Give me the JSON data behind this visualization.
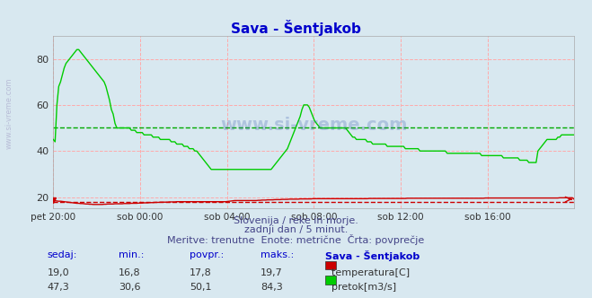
{
  "title": "Sava - Šentjakob",
  "bg_color": "#d8e8f0",
  "plot_bg_color": "#d8e8f0",
  "grid_color": "#ffaaaa",
  "grid_style": "--",
  "avg_temp": 17.8,
  "avg_flow": 50.1,
  "temp_color": "#cc0000",
  "flow_color": "#00cc00",
  "avg_temp_color": "#cc0000",
  "avg_flow_color": "#00aa00",
  "xlim": [
    0,
    288
  ],
  "ylim": [
    15,
    90
  ],
  "yticks": [
    20,
    40,
    60,
    80
  ],
  "xtick_positions": [
    0,
    48,
    96,
    144,
    192,
    240,
    288
  ],
  "xtick_labels": [
    "pet 20:00",
    "sob 00:00",
    "sob 04:00",
    "sob 08:00",
    "sob 12:00",
    "sob 16:00",
    ""
  ],
  "subtitle1": "Slovenija / reke in morje.",
  "subtitle2": "zadnji dan / 5 minut.",
  "subtitle3": "Meritve: trenutne  Enote: metrične  Črta: povprečje",
  "table_header": [
    "sedaj:",
    "min.:",
    "povpr.:",
    "maks.:",
    "Sava - Šentjakob"
  ],
  "temp_row": [
    "19,0",
    "16,8",
    "17,8",
    "19,7",
    "temperatura[C]"
  ],
  "flow_row": [
    "47,3",
    "30,6",
    "50,1",
    "84,3",
    "pretok[m3/s]"
  ],
  "watermark_text": "www.si-vreme.com",
  "side_text": "www.si-vreme.com",
  "temp_data": [
    18.5,
    18.4,
    18.3,
    18.2,
    18.2,
    18.1,
    18.0,
    17.9,
    17.8,
    17.7,
    17.6,
    17.5,
    17.4,
    17.3,
    17.3,
    17.2,
    17.2,
    17.1,
    17.0,
    17.0,
    16.9,
    16.9,
    16.8,
    16.8,
    16.8,
    16.8,
    16.8,
    16.8,
    16.9,
    16.9,
    17.0,
    17.0,
    17.0,
    17.0,
    17.1,
    17.1,
    17.1,
    17.1,
    17.1,
    17.2,
    17.2,
    17.2,
    17.2,
    17.3,
    17.3,
    17.3,
    17.3,
    17.4,
    17.4,
    17.4,
    17.5,
    17.5,
    17.5,
    17.6,
    17.6,
    17.6,
    17.7,
    17.7,
    17.7,
    17.8,
    17.8,
    17.8,
    17.8,
    17.8,
    17.9,
    17.9,
    17.9,
    17.9,
    18.0,
    18.0,
    18.0,
    18.0,
    18.0,
    18.0,
    18.0,
    18.0,
    18.0,
    18.0,
    18.0,
    18.0,
    18.0,
    18.0,
    18.0,
    18.0,
    18.0,
    18.0,
    18.0,
    18.0,
    18.0,
    18.0,
    18.0,
    18.0,
    18.0,
    18.0,
    18.0,
    18.0,
    18.1,
    18.2,
    18.3,
    18.4,
    18.5,
    18.5,
    18.5,
    18.5,
    18.5,
    18.5,
    18.5,
    18.5,
    18.5,
    18.5,
    18.5,
    18.5,
    18.5,
    18.6,
    18.6,
    18.7,
    18.7,
    18.7,
    18.8,
    18.8,
    18.8,
    18.8,
    18.9,
    18.9,
    18.9,
    18.9,
    19.0,
    19.0,
    19.0,
    19.0,
    19.1,
    19.1,
    19.1,
    19.1,
    19.1,
    19.1,
    19.2,
    19.2,
    19.2,
    19.2,
    19.2,
    19.2,
    19.2,
    19.3,
    19.3,
    19.3,
    19.3,
    19.3,
    19.3,
    19.3,
    19.3,
    19.3,
    19.3,
    19.3,
    19.3,
    19.3,
    19.3,
    19.3,
    19.3,
    19.3,
    19.3,
    19.3,
    19.3,
    19.3,
    19.3,
    19.3,
    19.3,
    19.3,
    19.3,
    19.3,
    19.3,
    19.3,
    19.3,
    19.3,
    19.4,
    19.4,
    19.4,
    19.4,
    19.4,
    19.4,
    19.4,
    19.4,
    19.4,
    19.4,
    19.4,
    19.4,
    19.4,
    19.4,
    19.4,
    19.4,
    19.4,
    19.4,
    19.4,
    19.4,
    19.4,
    19.5,
    19.5,
    19.5,
    19.5,
    19.5,
    19.5,
    19.5,
    19.5,
    19.5,
    19.5,
    19.5,
    19.5,
    19.5,
    19.5,
    19.5,
    19.5,
    19.5,
    19.5,
    19.5,
    19.5,
    19.5,
    19.5,
    19.5,
    19.5,
    19.5,
    19.5,
    19.5,
    19.5,
    19.5,
    19.5,
    19.5,
    19.5,
    19.5,
    19.5,
    19.5,
    19.5,
    19.5,
    19.5,
    19.5,
    19.5,
    19.5,
    19.5,
    19.5,
    19.6,
    19.6,
    19.6,
    19.6,
    19.6,
    19.6,
    19.6,
    19.6,
    19.6,
    19.6,
    19.6,
    19.6,
    19.6,
    19.6,
    19.6,
    19.6,
    19.6,
    19.6,
    19.6,
    19.6,
    19.6,
    19.6,
    19.6,
    19.6,
    19.6,
    19.6,
    19.6,
    19.6,
    19.6,
    19.6,
    19.6,
    19.6,
    19.6,
    19.6,
    19.6,
    19.6,
    19.6,
    19.6,
    19.6,
    19.6,
    19.6,
    19.7,
    19.7,
    19.7,
    19.7,
    19.7,
    19.7,
    19.7,
    19.7,
    19.0
  ],
  "flow_data": [
    45,
    44,
    60,
    68,
    70,
    73,
    76,
    78,
    79,
    80,
    81,
    82,
    83,
    84,
    84,
    83,
    82,
    81,
    80,
    79,
    78,
    77,
    76,
    75,
    74,
    73,
    72,
    71,
    70,
    68,
    65,
    62,
    58,
    56,
    52,
    50,
    50,
    50,
    50,
    50,
    50,
    50,
    50,
    49,
    49,
    49,
    48,
    48,
    48,
    48,
    47,
    47,
    47,
    47,
    47,
    46,
    46,
    46,
    46,
    45,
    45,
    45,
    45,
    45,
    45,
    44,
    44,
    44,
    43,
    43,
    43,
    43,
    42,
    42,
    42,
    41,
    41,
    41,
    40,
    40,
    39,
    38,
    37,
    36,
    35,
    34,
    33,
    32,
    32,
    32,
    32,
    32,
    32,
    32,
    32,
    32,
    32,
    32,
    32,
    32,
    32,
    32,
    32,
    32,
    32,
    32,
    32,
    32,
    32,
    32,
    32,
    32,
    32,
    32,
    32,
    32,
    32,
    32,
    32,
    32,
    32,
    33,
    34,
    35,
    36,
    37,
    38,
    39,
    40,
    41,
    43,
    45,
    47,
    49,
    51,
    53,
    55,
    58,
    60,
    60,
    60,
    59,
    57,
    55,
    53,
    52,
    51,
    50,
    50,
    50,
    50,
    50,
    50,
    50,
    50,
    50,
    50,
    50,
    50,
    50,
    50,
    50,
    49,
    48,
    47,
    46,
    46,
    45,
    45,
    45,
    45,
    45,
    45,
    44,
    44,
    44,
    43,
    43,
    43,
    43,
    43,
    43,
    43,
    43,
    42,
    42,
    42,
    42,
    42,
    42,
    42,
    42,
    42,
    42,
    41,
    41,
    41,
    41,
    41,
    41,
    41,
    41,
    40,
    40,
    40,
    40,
    40,
    40,
    40,
    40,
    40,
    40,
    40,
    40,
    40,
    40,
    40,
    39,
    39,
    39,
    39,
    39,
    39,
    39,
    39,
    39,
    39,
    39,
    39,
    39,
    39,
    39,
    39,
    39,
    39,
    39,
    38,
    38,
    38,
    38,
    38,
    38,
    38,
    38,
    38,
    38,
    38,
    38,
    37,
    37,
    37,
    37,
    37,
    37,
    37,
    37,
    37,
    36,
    36,
    36,
    36,
    36,
    35,
    35,
    35,
    35,
    35,
    40,
    41,
    42,
    43,
    44,
    45,
    45,
    45,
    45,
    45,
    45,
    46,
    46,
    47,
    47,
    47,
    47,
    47,
    47,
    47,
    47
  ]
}
